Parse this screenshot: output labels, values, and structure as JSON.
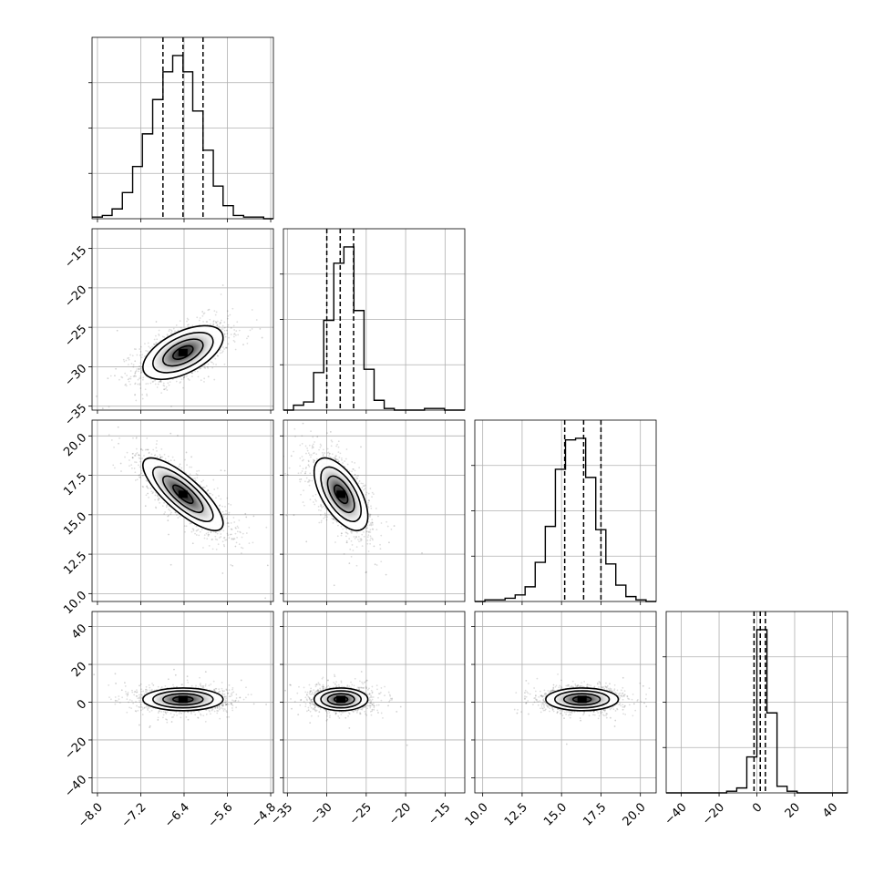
{
  "chart_data": {
    "type": "corner",
    "title": "",
    "parameters": [
      {
        "name": "",
        "range": [
          -8.1,
          -4.75
        ],
        "ticks": [
          -8.0,
          -7.2,
          -6.4,
          -5.6,
          -4.8
        ],
        "tick_labels": [
          "−8.0",
          "−7.2",
          "−6.4",
          "−5.6",
          "−4.8"
        ],
        "quantiles": [
          -6.79,
          -6.42,
          -6.05
        ],
        "hist_bins": [
          -8.1,
          -7.91,
          -7.73,
          -7.54,
          -7.35,
          -7.17,
          -6.98,
          -6.79,
          -6.61,
          -6.42,
          -6.24,
          -6.05,
          -5.86,
          -5.68,
          -5.49,
          -5.3,
          -5.12,
          -4.93,
          -4.75
        ],
        "hist_counts": [
          0.01,
          0.02,
          0.06,
          0.16,
          0.32,
          0.52,
          0.73,
          0.9,
          1.0,
          0.9,
          0.66,
          0.42,
          0.2,
          0.08,
          0.02,
          0.01,
          0.01,
          0.0
        ]
      },
      {
        "name": "",
        "range": [
          -35.5,
          -12.5
        ],
        "ticks": [
          -35,
          -30,
          -25,
          -20,
          -15
        ],
        "tick_labels": [
          "−35",
          "−30",
          "−25",
          "−20",
          "−15"
        ],
        "quantiles": [
          -30.0,
          -28.3,
          -26.6
        ],
        "hist_bins": [
          -35.5,
          -34.22,
          -32.94,
          -31.67,
          -30.39,
          -29.11,
          -27.83,
          -26.56,
          -25.28,
          -24.0,
          -22.72,
          -21.44,
          -20.17,
          -18.89,
          -17.61,
          -16.33,
          -15.06,
          -13.78,
          -12.5
        ],
        "hist_counts": [
          0.0,
          0.03,
          0.05,
          0.23,
          0.55,
          0.9,
          1.0,
          0.61,
          0.25,
          0.06,
          0.01,
          0.0,
          0.0,
          0.0,
          0.01,
          0.01,
          0.0,
          0.0
        ]
      },
      {
        "name": "",
        "range": [
          9.5,
          21.0
        ],
        "ticks": [
          10.0,
          12.5,
          15.0,
          17.5,
          20.0
        ],
        "tick_labels": [
          "10.0",
          "12.5",
          "15.0",
          "17.5",
          "20.0"
        ],
        "quantiles": [
          15.2,
          16.4,
          17.5
        ],
        "hist_bins": [
          9.5,
          10.14,
          10.78,
          11.42,
          12.06,
          12.69,
          13.33,
          13.97,
          14.61,
          15.25,
          15.89,
          16.53,
          17.17,
          17.81,
          18.44,
          19.08,
          19.72,
          20.36,
          21.0
        ],
        "hist_counts": [
          0.0,
          0.01,
          0.01,
          0.02,
          0.04,
          0.09,
          0.24,
          0.46,
          0.81,
          0.99,
          1.0,
          0.76,
          0.44,
          0.23,
          0.1,
          0.03,
          0.01,
          0.0
        ]
      },
      {
        "name": "",
        "range": [
          -48,
          48
        ],
        "ticks": [
          -40,
          -20,
          0,
          20,
          40
        ],
        "tick_labels": [
          "−40",
          "−20",
          "0",
          "20",
          "40"
        ],
        "quantiles": [
          -1.5,
          1.8,
          4.5
        ],
        "hist_bins": [
          -48,
          -42.67,
          -37.33,
          -32.0,
          -26.67,
          -21.33,
          -16.0,
          -10.67,
          -5.33,
          0.0,
          5.33,
          10.67,
          16.0,
          21.33,
          26.67,
          32.0,
          37.33,
          42.67,
          48
        ],
        "hist_counts": [
          0.0,
          0.0,
          0.0,
          0.0,
          0.0,
          0.0,
          0.01,
          0.03,
          0.22,
          1.0,
          0.49,
          0.04,
          0.01,
          0.0,
          0.0,
          0.0,
          0.0,
          0.0
        ]
      }
    ],
    "pair_panels": [
      {
        "x": 0,
        "y": 1,
        "center": [
          -6.42,
          -28.2
        ],
        "sd": [
          0.37,
          1.7
        ],
        "corr": 0.55
      },
      {
        "x": 0,
        "y": 2,
        "center": [
          -6.42,
          16.3
        ],
        "sd": [
          0.37,
          1.15
        ],
        "corr": -0.8
      },
      {
        "x": 1,
        "y": 2,
        "center": [
          -28.2,
          16.3
        ],
        "sd": [
          1.7,
          1.15
        ],
        "corr": -0.6
      },
      {
        "x": 0,
        "y": 3,
        "center": [
          -6.42,
          1.5
        ],
        "sd": [
          0.37,
          3.0
        ],
        "corr": 0.0
      },
      {
        "x": 1,
        "y": 3,
        "center": [
          -28.2,
          1.5
        ],
        "sd": [
          1.7,
          3.0
        ],
        "corr": 0.0
      },
      {
        "x": 2,
        "y": 3,
        "center": [
          16.3,
          1.5
        ],
        "sd": [
          1.15,
          3.0
        ],
        "corr": 0.0
      }
    ],
    "contour_levels_sigma": [
      0.5,
      1.0,
      1.5,
      2.0
    ],
    "grid": true,
    "legend": "none"
  }
}
